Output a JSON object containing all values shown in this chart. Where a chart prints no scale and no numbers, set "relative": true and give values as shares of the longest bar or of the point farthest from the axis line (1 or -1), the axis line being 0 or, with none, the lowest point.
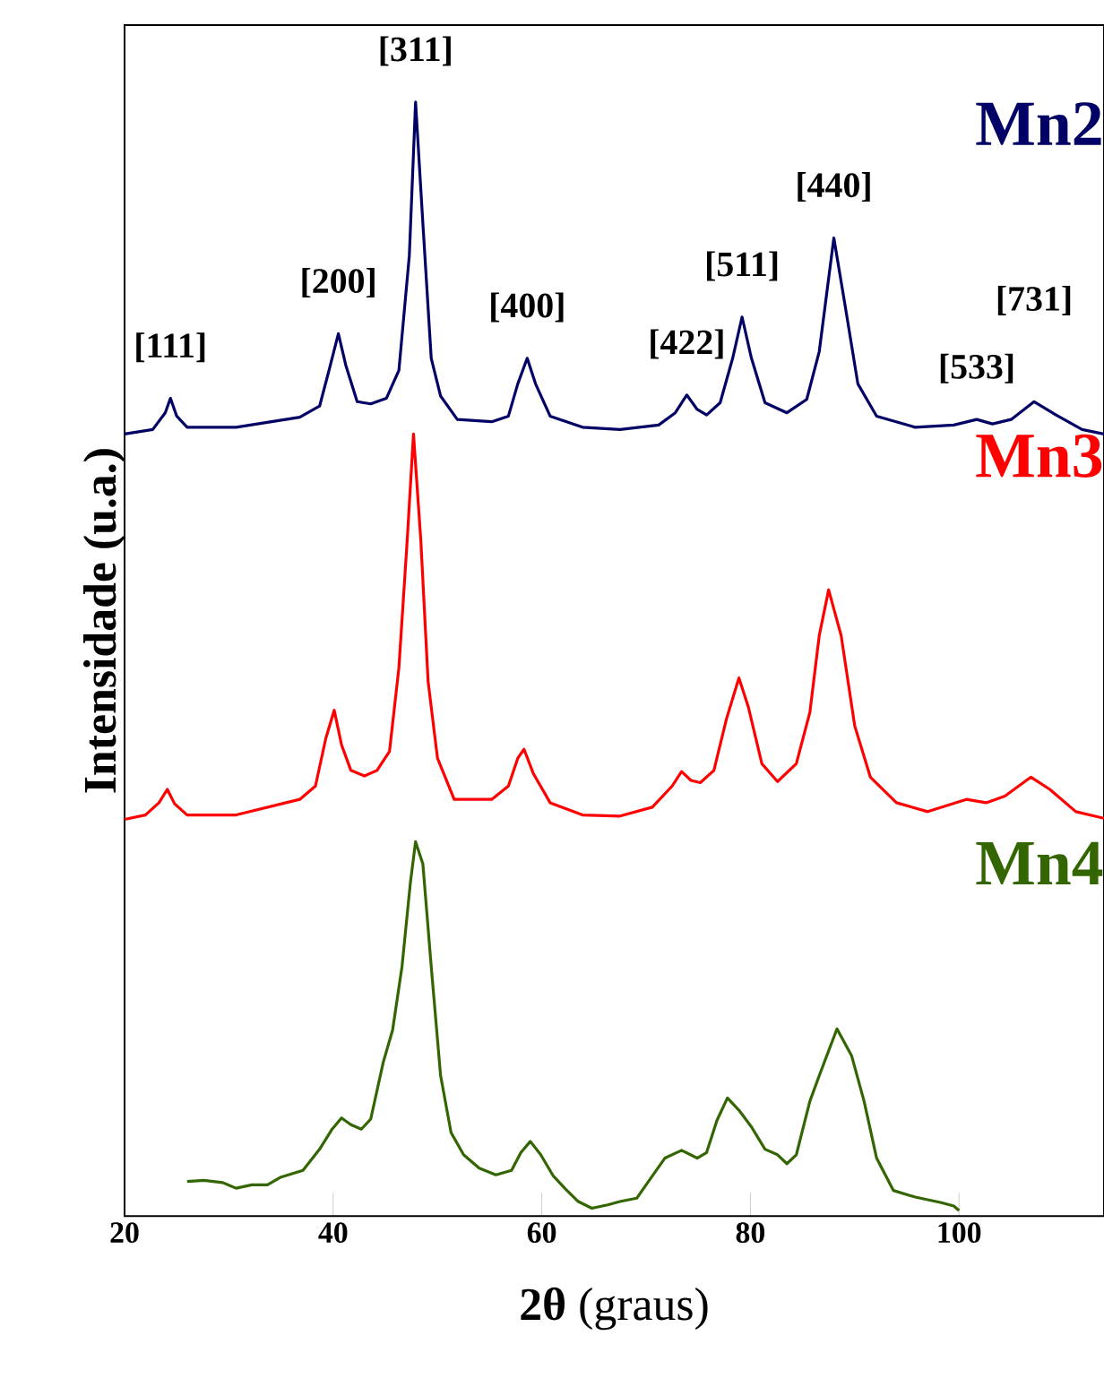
{
  "chart_data": {
    "type": "line",
    "xlabel": "**2θ** (graus)",
    "ylabel": "Intensidade (u.a.)",
    "relative": true,
    "tick_labels": "x",
    "xlim": [
      20,
      113.9
    ],
    "xticks": [
      20,
      40,
      60,
      80,
      100
    ],
    "series": [
      {
        "name": "Mn2",
        "color": "#000066",
        "x": [
          20.0,
          22.7,
          23.9,
          24.4,
          25.0,
          26.0,
          30.7,
          36.8,
          38.7,
          39.6,
          40.5,
          41.2,
          42.3,
          43.6,
          45.1,
          46.3,
          47.3,
          47.9,
          48.6,
          49.4,
          50.3,
          51.9,
          55.2,
          56.8,
          57.7,
          58.6,
          59.4,
          60.8,
          63.9,
          67.5,
          71.2,
          72.8,
          73.9,
          74.9,
          75.8,
          77.1,
          78.3,
          79.2,
          80.1,
          81.4,
          83.5,
          85.4,
          86.6,
          88.0,
          89.1,
          90.3,
          92.1,
          95.8,
          99.5,
          101.7,
          103.2,
          105.0,
          107.2,
          109.3,
          111.8,
          113.9
        ],
        "values": [
          0.702,
          0.706,
          0.721,
          0.734,
          0.718,
          0.708,
          0.708,
          0.717,
          0.727,
          0.759,
          0.792,
          0.764,
          0.731,
          0.729,
          0.734,
          0.759,
          0.862,
          1.0,
          0.891,
          0.77,
          0.736,
          0.715,
          0.713,
          0.718,
          0.747,
          0.77,
          0.747,
          0.718,
          0.708,
          0.706,
          0.71,
          0.721,
          0.737,
          0.724,
          0.719,
          0.73,
          0.77,
          0.807,
          0.77,
          0.73,
          0.721,
          0.733,
          0.776,
          0.878,
          0.816,
          0.747,
          0.718,
          0.708,
          0.71,
          0.715,
          0.711,
          0.715,
          0.731,
          0.719,
          0.706,
          0.702
        ]
      },
      {
        "name": "Mn3",
        "color": "#ff0000",
        "x": [
          20.0,
          22.0,
          23.3,
          24.1,
          24.8,
          26.0,
          30.7,
          36.8,
          38.3,
          39.3,
          40.1,
          40.8,
          41.7,
          43.0,
          44.2,
          45.4,
          46.3,
          47.1,
          47.7,
          48.4,
          49.1,
          50.0,
          51.6,
          55.2,
          56.8,
          57.7,
          58.3,
          59.2,
          60.8,
          63.9,
          67.5,
          70.6,
          72.5,
          73.4,
          74.3,
          75.2,
          76.5,
          77.7,
          78.9,
          79.8,
          81.1,
          82.6,
          84.4,
          85.7,
          86.6,
          87.5,
          88.7,
          90.0,
          91.5,
          94.0,
          97.0,
          100.7,
          102.6,
          104.4,
          106.9,
          108.7,
          111.2,
          113.9
        ],
        "values": [
          0.356,
          0.36,
          0.371,
          0.383,
          0.37,
          0.36,
          0.36,
          0.374,
          0.386,
          0.429,
          0.454,
          0.423,
          0.4,
          0.395,
          0.4,
          0.417,
          0.492,
          0.607,
          0.702,
          0.607,
          0.48,
          0.411,
          0.374,
          0.374,
          0.386,
          0.411,
          0.419,
          0.397,
          0.371,
          0.36,
          0.359,
          0.367,
          0.386,
          0.399,
          0.391,
          0.389,
          0.4,
          0.446,
          0.483,
          0.457,
          0.406,
          0.39,
          0.406,
          0.452,
          0.521,
          0.562,
          0.521,
          0.44,
          0.394,
          0.371,
          0.363,
          0.374,
          0.371,
          0.377,
          0.394,
          0.383,
          0.363,
          0.357
        ]
      },
      {
        "name": "Mn4",
        "color": "#336600",
        "x": [
          26.0,
          27.6,
          29.4,
          30.7,
          32.2,
          33.7,
          35.0,
          37.1,
          38.7,
          39.9,
          40.8,
          41.7,
          42.7,
          43.6,
          44.8,
          45.7,
          46.6,
          47.4,
          47.9,
          48.6,
          49.4,
          50.3,
          51.3,
          52.5,
          54.0,
          55.6,
          57.1,
          58.0,
          58.9,
          59.9,
          61.1,
          62.3,
          63.5,
          64.8,
          66.3,
          67.5,
          69.1,
          70.3,
          71.8,
          73.4,
          74.9,
          75.8,
          76.8,
          77.8,
          78.9,
          80.1,
          81.4,
          82.6,
          83.5,
          84.4,
          85.7,
          86.6,
          88.3,
          89.7,
          90.9,
          92.1,
          93.7,
          95.8,
          98.3,
          99.5,
          100.0
        ],
        "values": [
          0.031,
          0.032,
          0.03,
          0.025,
          0.028,
          0.028,
          0.035,
          0.041,
          0.06,
          0.078,
          0.088,
          0.082,
          0.078,
          0.087,
          0.138,
          0.167,
          0.224,
          0.299,
          0.336,
          0.316,
          0.224,
          0.126,
          0.075,
          0.055,
          0.043,
          0.037,
          0.041,
          0.057,
          0.067,
          0.055,
          0.036,
          0.024,
          0.013,
          0.007,
          0.01,
          0.013,
          0.016,
          0.032,
          0.052,
          0.059,
          0.052,
          0.057,
          0.086,
          0.106,
          0.095,
          0.08,
          0.06,
          0.055,
          0.047,
          0.055,
          0.103,
          0.126,
          0.168,
          0.144,
          0.103,
          0.052,
          0.023,
          0.017,
          0.012,
          0.009,
          0.005
        ]
      }
    ],
    "annotations": [
      {
        "text": "[111]",
        "x": 24.4,
        "y": 0.734
      },
      {
        "text": "[200]",
        "x": 40.5,
        "y": 0.792
      },
      {
        "text": "[311]",
        "x": 47.9,
        "y": 1.0
      },
      {
        "text": "[400]",
        "x": 58.6,
        "y": 0.77
      },
      {
        "text": "[422]",
        "x": 73.9,
        "y": 0.737
      },
      {
        "text": "[511]",
        "x": 79.2,
        "y": 0.807
      },
      {
        "text": "[440]",
        "x": 88.0,
        "y": 0.878
      },
      {
        "text": "[533]",
        "x": 101.7,
        "y": 0.715
      },
      {
        "text": "[731]",
        "x": 107.2,
        "y": 0.731
      }
    ]
  }
}
